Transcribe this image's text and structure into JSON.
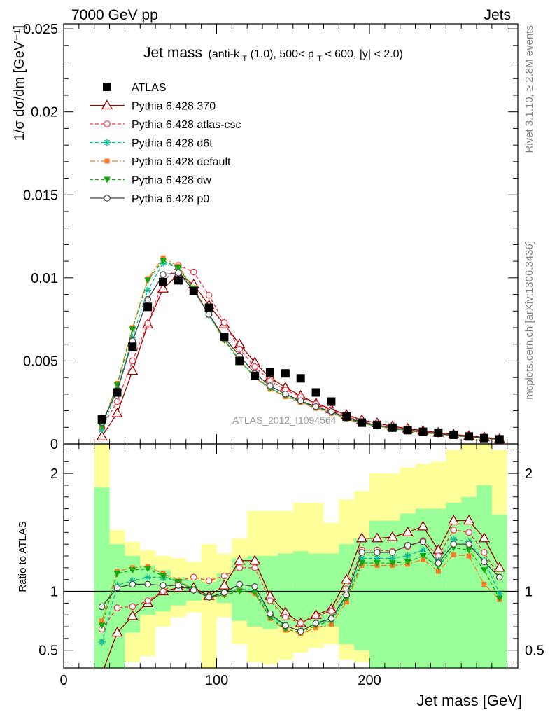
{
  "header": {
    "left": "7000 GeV pp",
    "right": "Jets"
  },
  "title": {
    "main": "Jet mass",
    "sub_parts": [
      "(anti-k",
      "T",
      "(1.0), 500< p",
      "T",
      " < 600, |y| < 2.0)"
    ]
  },
  "side_labels": {
    "rivet": "Rivet 3.1.10, ≥ 2.8M events",
    "mcplots": "mcplots.cern.ch [arXiv:1306.3436]"
  },
  "watermark": "ATLAS_2012_I1094564",
  "colors": {
    "band_inner": "#99ff99",
    "band_outer": "#ffff99",
    "s370": "#990000",
    "atlas_csc": "#ee3344",
    "d6t": "#11bb99",
    "default": "#ff7722",
    "dw": "#11aa11",
    "p0": "#444444"
  },
  "chart_data": [
    {
      "type": "scatter",
      "panel": "main",
      "ylabel": "1/σ dσ/dm [GeV⁻¹]",
      "xlim": [
        0,
        297
      ],
      "ylim": [
        0,
        0.0253
      ],
      "yticks": [
        0,
        0.005,
        0.01,
        0.015,
        0.02,
        0.025
      ],
      "ytick_labels": [
        "0",
        "0.005",
        "0.01",
        "0.015",
        "0.02",
        "0.025"
      ],
      "x": [
        25,
        35,
        45,
        55,
        65,
        75,
        85,
        95,
        105,
        115,
        125,
        135,
        145,
        155,
        165,
        175,
        185,
        195,
        205,
        215,
        225,
        235,
        245,
        255,
        265,
        275,
        285
      ],
      "series": [
        {
          "name": "ATLAS",
          "key": "atlas",
          "marker": "square",
          "line": "none",
          "values": [
            0.00148,
            0.0031,
            0.00585,
            0.00825,
            0.00975,
            0.00985,
            0.0092,
            0.0082,
            0.00645,
            0.005,
            0.0041,
            0.0043,
            0.00425,
            0.00395,
            0.0031,
            0.00255,
            0.00165,
            0.00128,
            0.00115,
            0.00098,
            0.00083,
            0.00073,
            0.00068,
            0.00055,
            0.00045,
            0.00035,
            0.00028
          ]
        },
        {
          "name": "Pythia 6.428 370",
          "key": "s370",
          "marker": "triangle-open",
          "line": "solid",
          "values": [
            0.00045,
            0.00185,
            0.0044,
            0.0072,
            0.00935,
            0.0102,
            0.0096,
            0.00835,
            0.0072,
            0.006,
            0.0049,
            0.004,
            0.0034,
            0.0029,
            0.00245,
            0.0021,
            0.00175,
            0.00145,
            0.00125,
            0.00107,
            0.00092,
            0.0008,
            0.00068,
            0.00058,
            0.00048,
            0.0004,
            0.0003
          ]
        },
        {
          "name": "Pythia 6.428 atlas-csc",
          "key": "atlas_csc",
          "marker": "circle-open",
          "line": "dashed",
          "values": [
            0.001,
            0.00255,
            0.005,
            0.00725,
            0.00975,
            0.01075,
            0.01035,
            0.00895,
            0.0073,
            0.0057,
            0.00465,
            0.0038,
            0.00325,
            0.00285,
            0.0024,
            0.00205,
            0.00165,
            0.00135,
            0.00115,
            0.001,
            0.00087,
            0.00075,
            0.00064,
            0.00054,
            0.00045,
            0.00037,
            0.00029
          ]
        },
        {
          "name": "Pythia 6.428 d6t",
          "key": "d6t",
          "marker": "star",
          "line": "dashed",
          "values": [
            0.00085,
            0.00325,
            0.0064,
            0.00925,
            0.0109,
            0.0106,
            0.0093,
            0.00775,
            0.0063,
            0.00505,
            0.00405,
            0.00335,
            0.0029,
            0.00255,
            0.0022,
            0.0019,
            0.00155,
            0.00125,
            0.00108,
            0.00094,
            0.00081,
            0.0007,
            0.0006,
            0.00051,
            0.00042,
            0.00034,
            0.00026
          ]
        },
        {
          "name": "Pythia 6.428 default",
          "key": "default",
          "marker": "square-small",
          "line": "dashdot",
          "values": [
            0.0011,
            0.00365,
            0.007,
            0.00995,
            0.0112,
            0.0107,
            0.0094,
            0.0078,
            0.00625,
            0.00505,
            0.004,
            0.0033,
            0.00285,
            0.0025,
            0.00215,
            0.00185,
            0.0015,
            0.00122,
            0.00106,
            0.00092,
            0.00079,
            0.00068,
            0.00058,
            0.00049,
            0.00041,
            0.00033,
            0.00025
          ]
        },
        {
          "name": "Pythia 6.428 dw",
          "key": "dw",
          "marker": "triangle-down",
          "line": "dashed",
          "values": [
            0.00105,
            0.00355,
            0.0069,
            0.00985,
            0.01105,
            0.0106,
            0.00935,
            0.00775,
            0.00625,
            0.005,
            0.00405,
            0.00335,
            0.0029,
            0.00255,
            0.0022,
            0.0019,
            0.00155,
            0.00124,
            0.00107,
            0.00093,
            0.0008,
            0.00069,
            0.00059,
            0.0005,
            0.00042,
            0.00034,
            0.00026
          ]
        },
        {
          "name": "Pythia 6.428 p0",
          "key": "p0",
          "marker": "circle-open",
          "line": "solid",
          "values": [
            0.0013,
            0.0032,
            0.0062,
            0.0087,
            0.0102,
            0.0103,
            0.00925,
            0.0078,
            0.0064,
            0.0053,
            0.00425,
            0.0035,
            0.003,
            0.0026,
            0.00225,
            0.00195,
            0.0016,
            0.0013,
            0.00112,
            0.00098,
            0.00084,
            0.00073,
            0.00062,
            0.00053,
            0.00044,
            0.00036,
            0.00028
          ]
        }
      ]
    },
    {
      "type": "line",
      "panel": "ratio",
      "ylabel": "Ratio to ATLAS",
      "xlabel": "Jet mass [GeV]",
      "xlim": [
        0,
        297
      ],
      "ylim": [
        0.35,
        2.25
      ],
      "xticks": [
        0,
        100,
        200
      ],
      "xtick_labels": [
        "0",
        "100",
        "200"
      ],
      "yticks": [
        0.5,
        1,
        2
      ],
      "ytick_labels": [
        "0.5",
        "1",
        "2"
      ],
      "bin_edges": [
        20,
        30,
        40,
        50,
        60,
        70,
        80,
        90,
        100,
        110,
        120,
        130,
        140,
        150,
        160,
        170,
        180,
        190,
        200,
        210,
        220,
        230,
        240,
        250,
        260,
        270,
        280,
        290
      ],
      "band_inner": {
        "lo": [
          0.35,
          0.35,
          0.65,
          0.8,
          0.83,
          0.88,
          0.92,
          0.95,
          0.9,
          0.75,
          0.7,
          0.68,
          0.7,
          0.7,
          0.7,
          0.7,
          0.55,
          0.5,
          0.35,
          0.35,
          0.35,
          0.35,
          0.35,
          0.35,
          0.35,
          0.35,
          0.35
        ],
        "hi": [
          1.88,
          1.4,
          1.3,
          1.22,
          1.18,
          1.12,
          1.1,
          1.08,
          1.15,
          1.28,
          1.3,
          1.3,
          1.32,
          1.34,
          1.32,
          1.32,
          1.4,
          1.45,
          1.6,
          1.6,
          1.66,
          1.7,
          1.7,
          1.75,
          1.8,
          1.9,
          1.65
        ]
      },
      "band_outer": {
        "lo": [
          0.35,
          0.35,
          0.4,
          0.45,
          0.7,
          0.78,
          0.82,
          0.35,
          0.78,
          0.55,
          0.4,
          0.38,
          0.42,
          0.48,
          0.52,
          0.55,
          0.42,
          0.4,
          0.35,
          0.35,
          0.35,
          0.35,
          0.35,
          0.35,
          0.35,
          0.35,
          0.35
        ],
        "hi": [
          2.25,
          1.52,
          1.42,
          1.35,
          1.3,
          1.28,
          1.25,
          1.4,
          1.32,
          1.45,
          1.68,
          1.68,
          1.68,
          1.75,
          1.75,
          1.58,
          1.78,
          1.85,
          2.0,
          2.0,
          2.05,
          2.08,
          2.1,
          2.2,
          2.25,
          2.25,
          2.2
        ]
      },
      "x": [
        25,
        35,
        45,
        55,
        65,
        75,
        85,
        95,
        105,
        115,
        125,
        135,
        145,
        155,
        165,
        175,
        185,
        195,
        205,
        215,
        225,
        235,
        245,
        255,
        265,
        275,
        285
      ],
      "series": [
        {
          "name": "Pythia 6.428 370",
          "key": "s370",
          "marker": "triangle-open",
          "line": "solid",
          "values": [
            0.3,
            0.65,
            0.79,
            0.9,
            1.0,
            1.03,
            1.03,
            0.96,
            1.05,
            1.26,
            1.26,
            0.96,
            0.82,
            0.73,
            0.8,
            0.85,
            1.1,
            1.45,
            1.45,
            1.46,
            1.5,
            1.55,
            1.35,
            1.6,
            1.6,
            1.45,
            1.2
          ]
        },
        {
          "name": "Pythia 6.428 atlas-csc",
          "key": "atlas_csc",
          "marker": "circle-open",
          "line": "dashed",
          "values": [
            0.68,
            0.86,
            0.87,
            0.92,
            1.0,
            1.09,
            1.12,
            1.09,
            1.13,
            1.2,
            1.2,
            0.92,
            0.78,
            0.73,
            0.79,
            0.83,
            1.02,
            1.35,
            1.35,
            1.34,
            1.38,
            1.43,
            1.3,
            1.52,
            1.5,
            1.33,
            1.12
          ]
        },
        {
          "name": "Pythia 6.428 d6t",
          "key": "d6t",
          "marker": "star",
          "line": "dashed",
          "values": [
            0.57,
            1.05,
            1.09,
            1.12,
            1.12,
            1.08,
            1.01,
            0.95,
            0.98,
            1.02,
            1.01,
            0.8,
            0.7,
            0.67,
            0.72,
            0.76,
            0.96,
            1.28,
            1.28,
            1.28,
            1.3,
            1.35,
            1.26,
            1.44,
            1.42,
            1.26,
            0.98
          ]
        },
        {
          "name": "Pythia 6.428 default",
          "key": "default",
          "marker": "square-small",
          "line": "dashdot",
          "values": [
            0.75,
            1.17,
            1.2,
            1.21,
            1.15,
            1.09,
            1.02,
            0.95,
            0.97,
            1.01,
            0.98,
            0.77,
            0.67,
            0.64,
            0.69,
            0.72,
            0.91,
            1.22,
            1.22,
            1.22,
            1.23,
            1.27,
            1.17,
            1.31,
            1.3,
            1.06,
            0.93
          ]
        },
        {
          "name": "Pythia 6.428 dw",
          "key": "dw",
          "marker": "triangle-down",
          "line": "dashed",
          "values": [
            0.71,
            1.15,
            1.18,
            1.19,
            1.13,
            1.08,
            1.02,
            0.95,
            0.97,
            1.0,
            0.99,
            0.78,
            0.68,
            0.65,
            0.71,
            0.75,
            0.94,
            1.24,
            1.24,
            1.24,
            1.25,
            1.3,
            1.21,
            1.37,
            1.35,
            1.18,
            0.94
          ]
        },
        {
          "name": "Pythia 6.428 p0",
          "key": "p0",
          "marker": "circle-open",
          "line": "solid",
          "values": [
            0.87,
            1.03,
            1.06,
            1.06,
            1.05,
            1.05,
            1.01,
            0.95,
            0.99,
            1.06,
            1.04,
            0.81,
            0.71,
            0.66,
            0.73,
            0.77,
            0.97,
            1.33,
            1.33,
            1.33,
            1.39,
            1.42,
            1.24,
            1.4,
            1.4,
            1.25,
            1.12
          ]
        }
      ]
    }
  ]
}
